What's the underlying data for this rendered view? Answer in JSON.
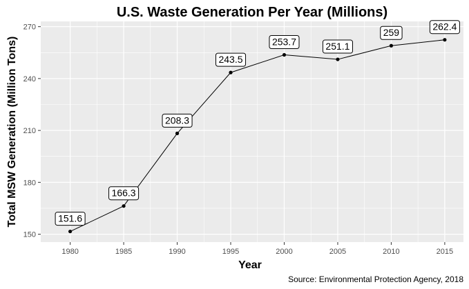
{
  "chart_data": {
    "type": "line",
    "title": "U.S. Waste Generation Per Year (Millions)",
    "xlabel": "Year",
    "ylabel": "Total MSW Generation (Million Tons)",
    "caption": "Source: Environmental Protection Agency, 2018",
    "x": [
      1980,
      1985,
      1990,
      1995,
      2000,
      2005,
      2010,
      2015
    ],
    "values": [
      151.6,
      166.3,
      208.3,
      243.5,
      253.7,
      251.1,
      259,
      262.4
    ],
    "data_labels": [
      "151.6",
      "166.3",
      "208.3",
      "243.5",
      "253.7",
      "251.1",
      "259",
      "262.4"
    ],
    "x_ticks": [
      "1980",
      "1985",
      "1990",
      "1995",
      "2000",
      "2005",
      "2010",
      "2015"
    ],
    "y_ticks": [
      "150",
      "180",
      "210",
      "240",
      "270"
    ],
    "y_tick_values": [
      150,
      180,
      210,
      240,
      270
    ],
    "xlim": [
      1977.25,
      2016.75
    ],
    "ylim": [
      145.45,
      273.05
    ],
    "grid": true,
    "colors": {
      "panel": "#ebebeb",
      "grid": "#ffffff",
      "line": "#000000",
      "text": "#4d4d4d"
    }
  }
}
